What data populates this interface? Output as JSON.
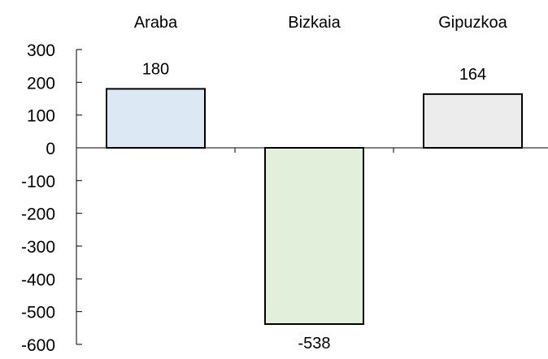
{
  "chart_data": {
    "type": "bar",
    "title": "",
    "xlabel": "",
    "ylabel": "",
    "categories": [
      "Araba",
      "Bizkaia",
      "Gipuzkoa"
    ],
    "values": [
      180,
      -538,
      164
    ],
    "data_labels": [
      "180",
      "-538",
      "164"
    ],
    "colors": [
      "#dde8f5",
      "#e2efda",
      "#ececec"
    ],
    "ylim": [
      -600,
      300
    ],
    "yticks": [
      300,
      200,
      100,
      0,
      -100,
      -200,
      -300,
      -400,
      -500,
      -600
    ],
    "ytick_labels": [
      "300",
      "200",
      "100",
      "0",
      "-100",
      "-200",
      "-300",
      "-400",
      "-500",
      "-600"
    ],
    "category_label_position": "top",
    "grid": false,
    "legend": "none"
  }
}
